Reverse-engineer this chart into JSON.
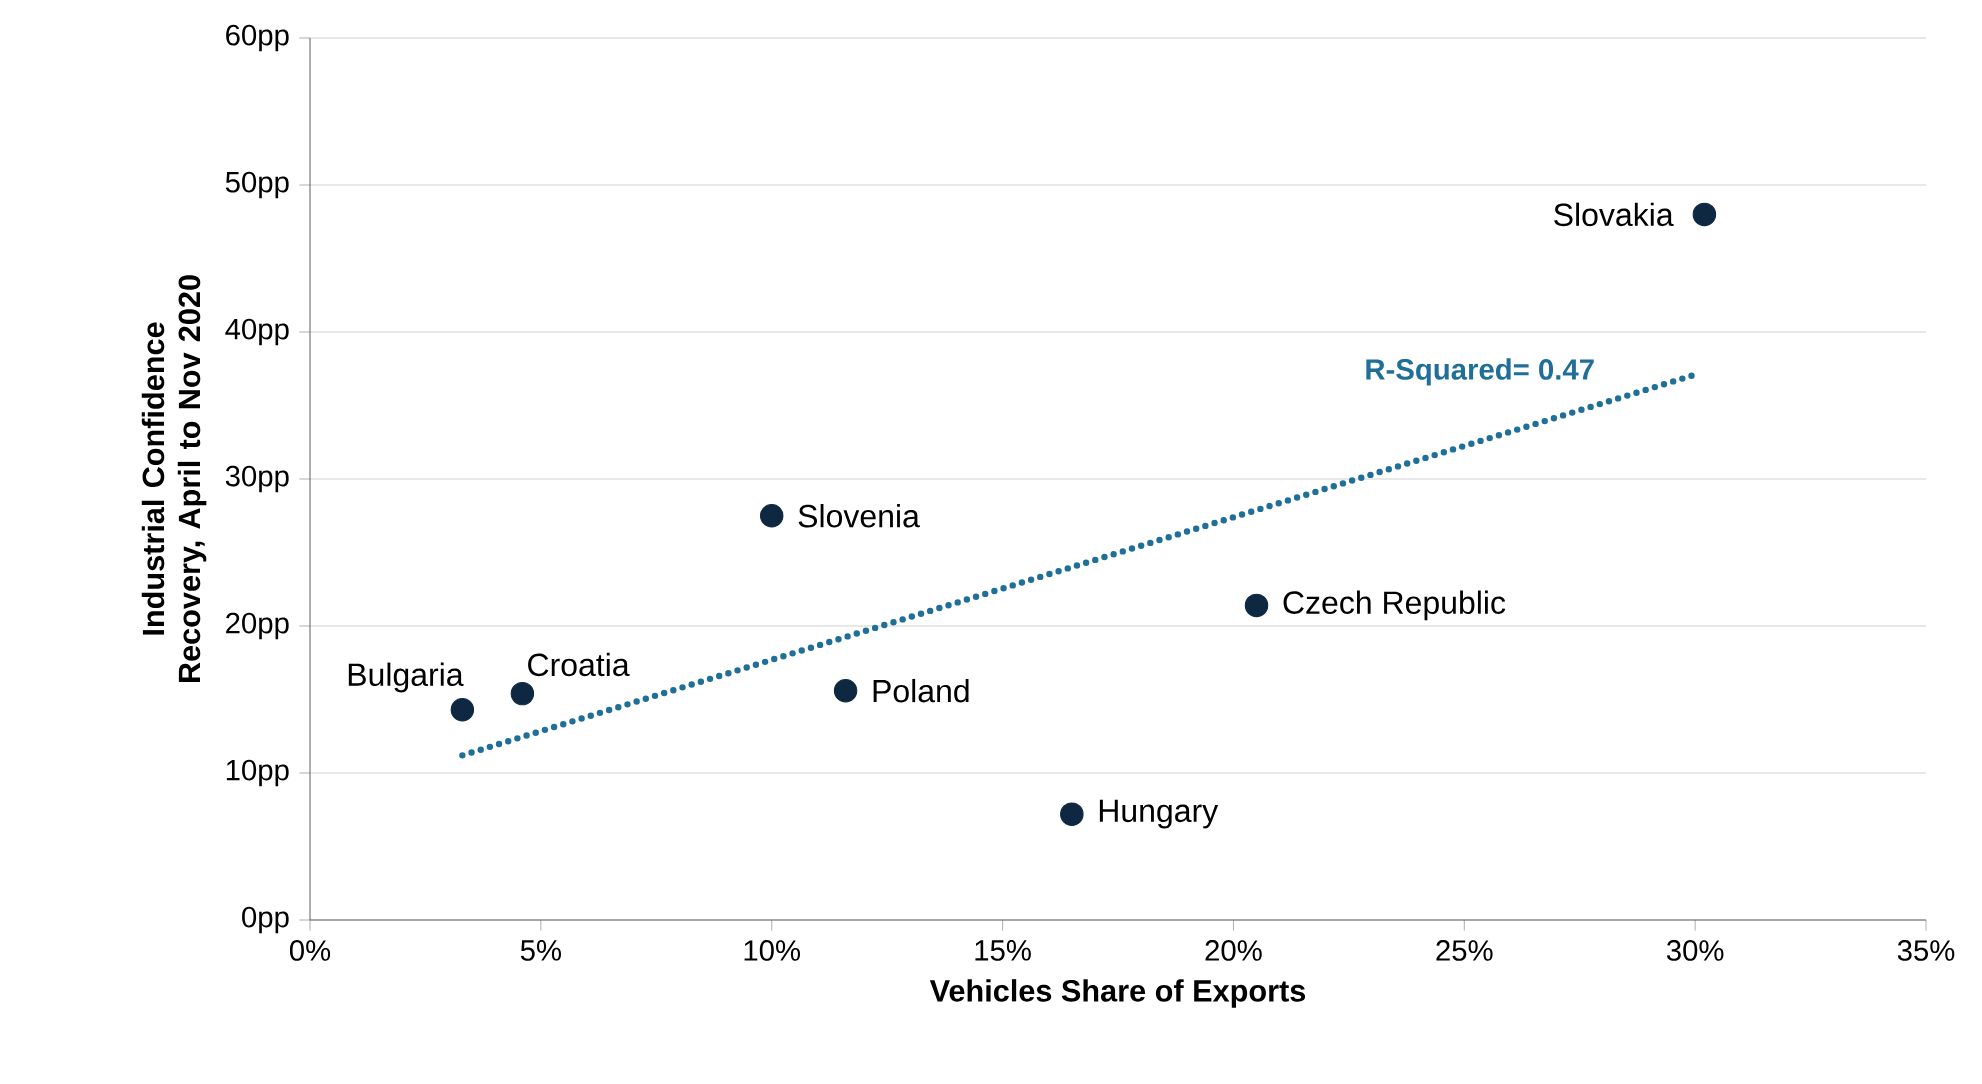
{
  "chart_data": {
    "type": "scatter",
    "xlabel": "Vehicles Share of Exports",
    "ylabel": "Industrial Confidence Recovery, April to Nov 2020",
    "xlim": [
      0,
      35
    ],
    "ylim": [
      0,
      60
    ],
    "xticks": [
      {
        "value": 0,
        "label": "0%"
      },
      {
        "value": 5,
        "label": "5%"
      },
      {
        "value": 10,
        "label": "10%"
      },
      {
        "value": 15,
        "label": "15%"
      },
      {
        "value": 20,
        "label": "20%"
      },
      {
        "value": 25,
        "label": "25%"
      },
      {
        "value": 30,
        "label": "30%"
      },
      {
        "value": 35,
        "label": "35%"
      }
    ],
    "yticks": [
      {
        "value": 0,
        "label": "0pp"
      },
      {
        "value": 10,
        "label": "10pp"
      },
      {
        "value": 20,
        "label": "20pp"
      },
      {
        "value": 30,
        "label": "30pp"
      },
      {
        "value": 40,
        "label": "40pp"
      },
      {
        "value": 50,
        "label": "50pp"
      },
      {
        "value": 60,
        "label": "60pp"
      }
    ],
    "grid": "y",
    "series": [
      {
        "name": "Bulgaria",
        "color": "#0e2841",
        "marker": "circle",
        "x": [
          3.3
        ],
        "values": [
          14.3
        ]
      },
      {
        "name": "Croatia",
        "color": "#0e2841",
        "marker": "circle",
        "x": [
          4.6
        ],
        "values": [
          15.4
        ]
      },
      {
        "name": "Slovenia",
        "color": "#0e2841",
        "marker": "circle",
        "x": [
          10.0
        ],
        "values": [
          27.5
        ]
      },
      {
        "name": "Poland",
        "color": "#0e2841",
        "marker": "circle",
        "x": [
          11.6
        ],
        "values": [
          15.6
        ]
      },
      {
        "name": "Hungary",
        "color": "#0e2841",
        "marker": "circle",
        "x": [
          16.5
        ],
        "values": [
          7.2
        ]
      },
      {
        "name": "Czech Republic",
        "color": "#0e2841",
        "marker": "circle",
        "x": [
          20.5
        ],
        "values": [
          21.4
        ]
      },
      {
        "name": "Slovakia",
        "color": "#0e2841",
        "marker": "circle",
        "x": [
          30.2
        ],
        "values": [
          48.0
        ]
      },
      {
        "type": "line",
        "color": "#1f6f99",
        "line_style": "dotted",
        "marker": "none",
        "x": [
          3.3,
          30.0
        ],
        "values": [
          11.2,
          37.1
        ]
      }
    ],
    "annotations": [
      "R-Squared= 0.47"
    ]
  }
}
